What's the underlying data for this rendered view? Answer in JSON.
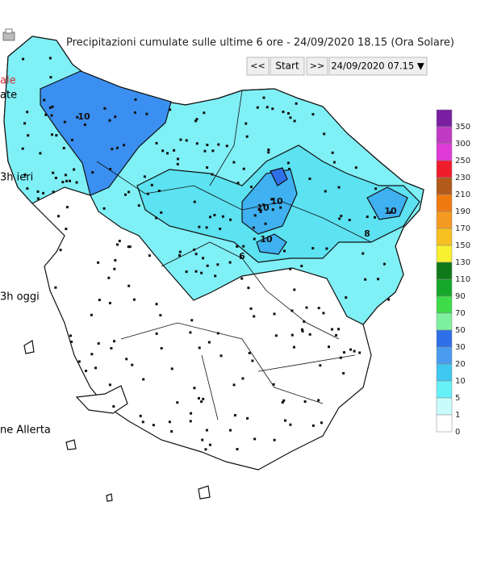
{
  "header": {
    "title": "Precipitazioni cumulate sulle ultime 6 ore - 24/09/2020 18.15 (Ora Solare)"
  },
  "controls": {
    "prev": "<<",
    "start": "Start",
    "next": ">>",
    "date_select": "24/09/2020 07.15 ▼"
  },
  "side_texts": [
    {
      "text": "ale",
      "color": "#d03030"
    },
    {
      "text": "ate",
      "color": "#000000"
    },
    {
      "text": "3h ieri",
      "color": "#000000"
    },
    {
      "text": "3h oggi",
      "color": "#000000"
    },
    {
      "text": "ne Allerta",
      "color": "#000000"
    }
  ],
  "legend": {
    "items": [
      {
        "label": 350,
        "color": "#7a1fa2"
      },
      {
        "label": 300,
        "color": "#c03bc4"
      },
      {
        "label": 250,
        "color": "#e03bd8"
      },
      {
        "label": 230,
        "color": "#ef1c2c"
      },
      {
        "label": 210,
        "color": "#b25a1a"
      },
      {
        "label": 190,
        "color": "#f07a10"
      },
      {
        "label": 170,
        "color": "#f59a20"
      },
      {
        "label": 150,
        "color": "#f8c020"
      },
      {
        "label": 130,
        "color": "#f8f030"
      },
      {
        "label": 110,
        "color": "#0f7a1a"
      },
      {
        "label": 90,
        "color": "#16a82a"
      },
      {
        "label": 70,
        "color": "#3fdc4a"
      },
      {
        "label": 50,
        "color": "#7ef0a0"
      },
      {
        "label": 30,
        "color": "#2f6fe8"
      },
      {
        "label": 20,
        "color": "#4a9cf0"
      },
      {
        "label": 10,
        "color": "#3fc8f0"
      },
      {
        "label": 5,
        "color": "#66f0f8"
      },
      {
        "label": 1,
        "color": "#c8fcfc"
      },
      {
        "label": 0,
        "color": "#ffffff"
      }
    ]
  },
  "map": {
    "contour_labels": [
      "10",
      "10",
      "10",
      "10",
      "10",
      "6",
      "8"
    ]
  }
}
